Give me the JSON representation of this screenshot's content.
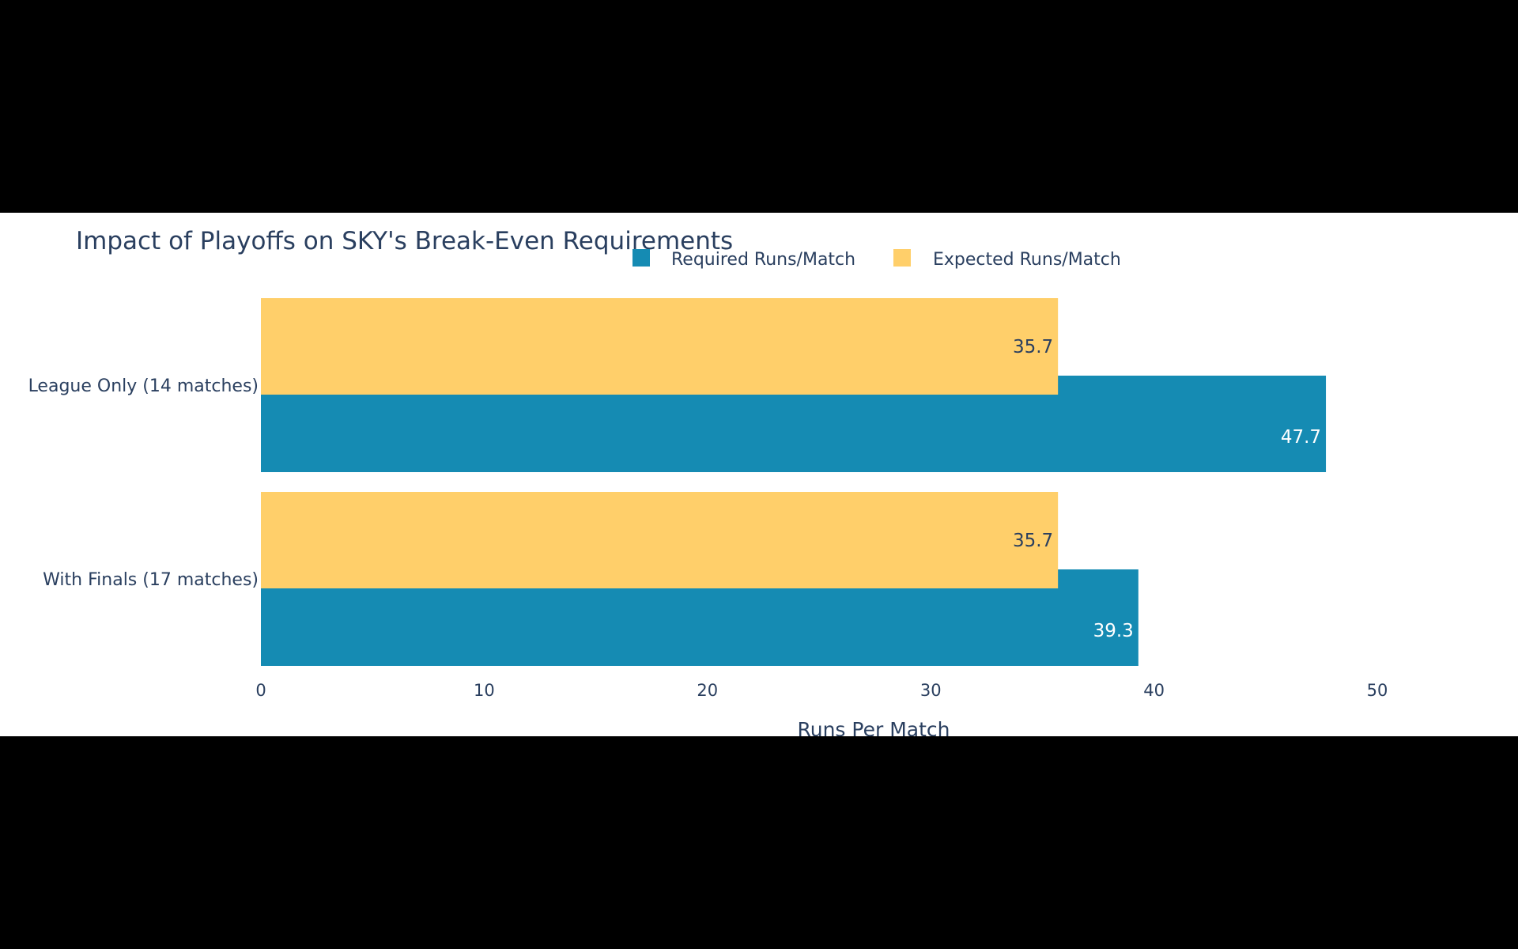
{
  "chart_data": {
    "type": "bar",
    "orientation": "horizontal",
    "title": "Impact of Playoffs on SKY's Break-Even Requirements",
    "categories": [
      "League Only (14 matches)",
      "With Finals (17 matches)"
    ],
    "series": [
      {
        "name": "Expected Runs/Match",
        "color": "#ffcf6a",
        "label_color": "#2a3f5f",
        "values": [
          35.7,
          35.7
        ],
        "labels": [
          "35.7",
          "35.7"
        ]
      },
      {
        "name": "Required Runs/Match",
        "color": "#158bb3",
        "label_color": "#ffffff",
        "values": [
          47.7,
          39.3
        ],
        "labels": [
          "47.7",
          "39.3"
        ]
      }
    ],
    "legend_order": [
      "Required Runs/Match",
      "Expected Runs/Match"
    ],
    "legend_position": "top-center",
    "xlabel": "Runs Per Match",
    "ylabel": "",
    "xlim": [
      0,
      55
    ],
    "xticks": [
      0,
      10,
      20,
      30,
      40,
      50
    ],
    "xtick_labels": [
      "0",
      "10",
      "20",
      "30",
      "40",
      "50"
    ],
    "grid": false
  },
  "colors": {
    "background": "#ffffff",
    "frame": "#000000",
    "text": "#2a3f5f"
  }
}
